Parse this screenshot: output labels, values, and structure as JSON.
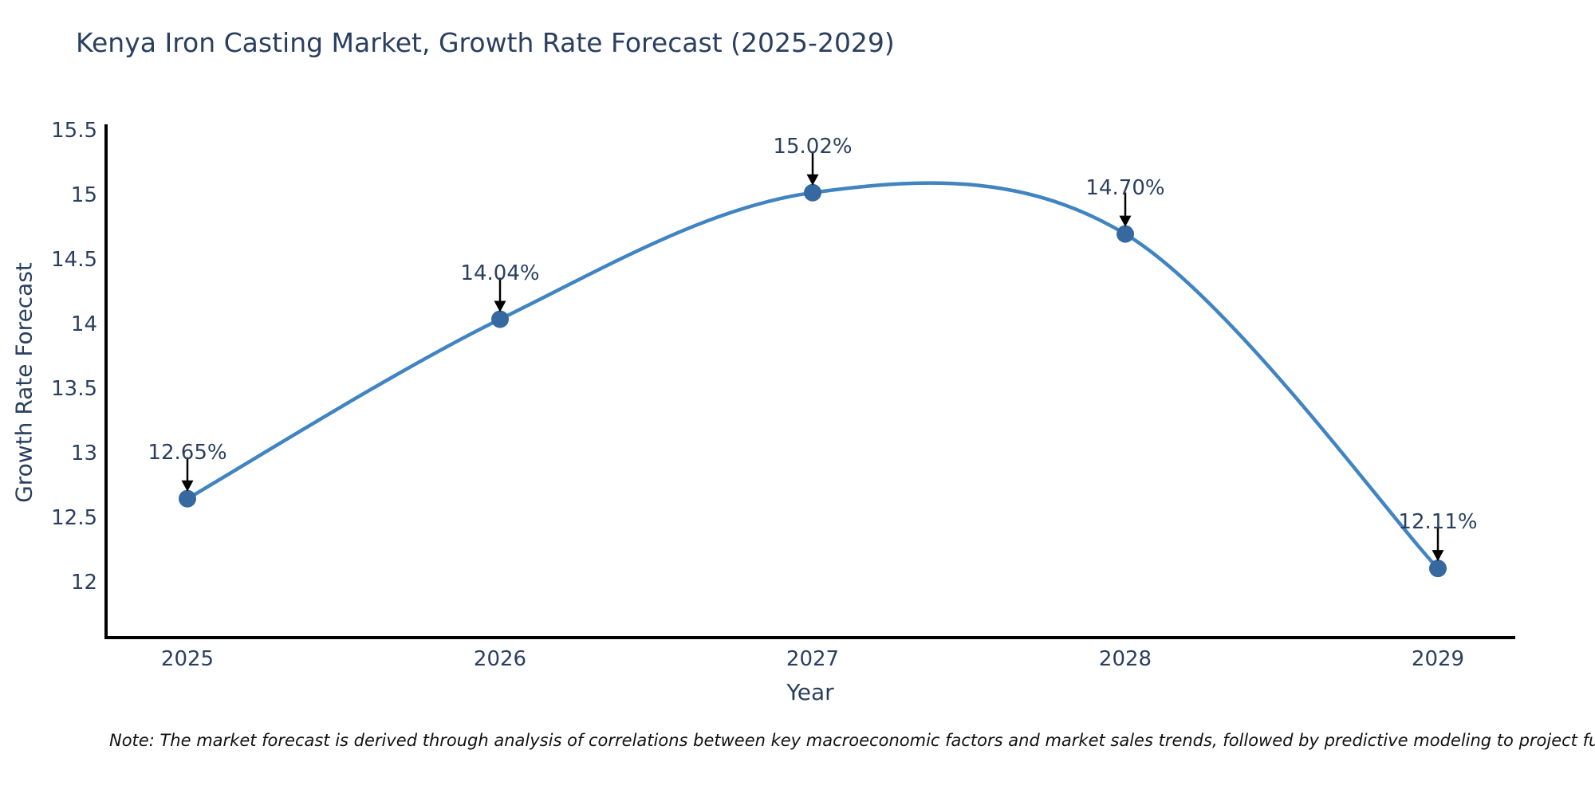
{
  "chart_data": {
    "type": "line",
    "title": "Kenya Iron Casting Market, Growth Rate Forecast (2025-2029)",
    "xlabel": "Year",
    "ylabel": "Growth Rate Forecast",
    "categories": [
      "2025",
      "2026",
      "2027",
      "2028",
      "2029"
    ],
    "series": [
      {
        "name": "Growth Rate Forecast",
        "values": [
          12.65,
          14.04,
          15.02,
          14.7,
          12.11
        ],
        "point_labels": [
          "12.65%",
          "14.04%",
          "15.02%",
          "14.70%",
          "12.11%"
        ]
      }
    ],
    "yticks": [
      "15.5",
      "15",
      "14.5",
      "14",
      "13.5",
      "13",
      "12.5",
      "12"
    ],
    "ylim": [
      11.57,
      15.54
    ],
    "grid": false,
    "legend_position": "none",
    "line_shape": "spline",
    "annotations_have_arrows": true,
    "colors": {
      "line": "#4084c1",
      "marker": "#35699f",
      "text": "#2a3f5f",
      "axis": "#000000",
      "arrow": "#000000"
    },
    "note": "Note: The market forecast is derived through analysis of correlations between key macroeconomic factors and market sales trends, followed by predictive modeling to project future sales trends."
  }
}
